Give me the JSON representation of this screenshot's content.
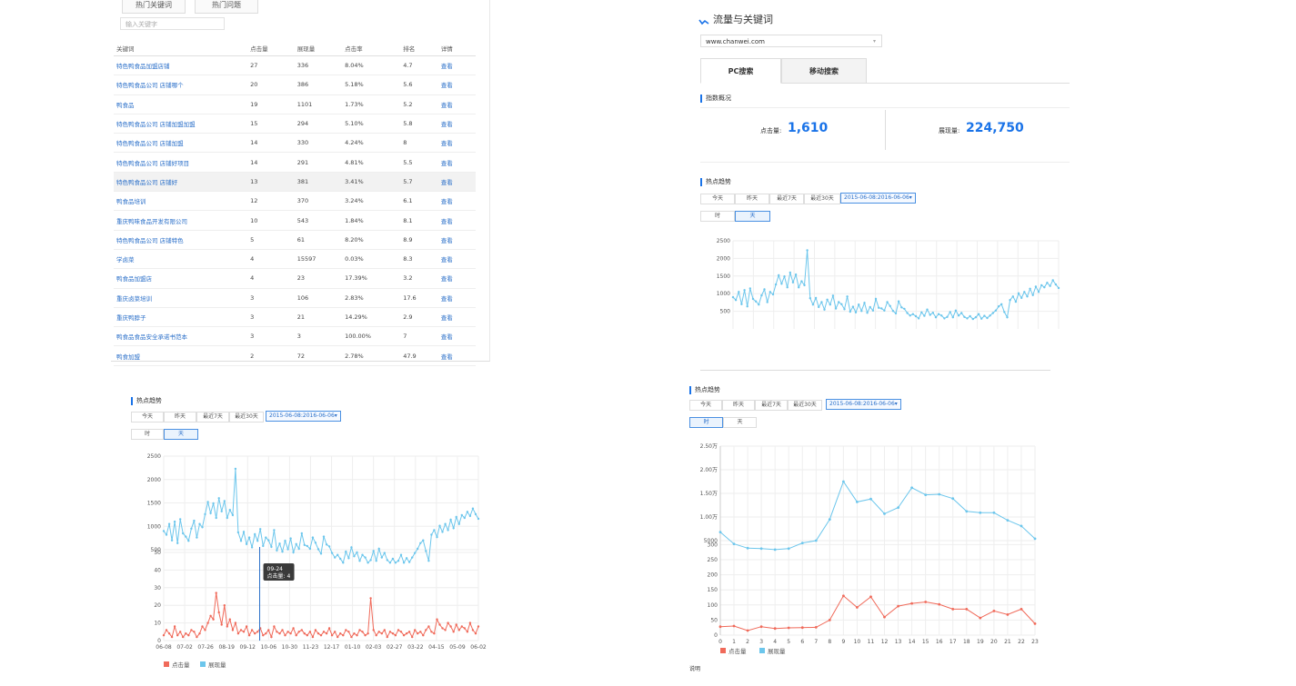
{
  "keywords_panel": {
    "tabs": [
      "热门关键词",
      "热门问题"
    ],
    "search_placeholder": "输入关键字",
    "headers": [
      "关键词",
      "点击量",
      "展现量",
      "点击率",
      "排名",
      "详情"
    ],
    "rows": [
      [
        "特色鸭食品加盟店铺",
        "27",
        "336",
        "8.04%",
        "4.7",
        "查看"
      ],
      [
        "特色鸭食品公司 店铺哪个",
        "20",
        "386",
        "5.18%",
        "5.6",
        "查看"
      ],
      [
        "鸭食品",
        "19",
        "1101",
        "1.73%",
        "5.2",
        "查看"
      ],
      [
        "特色鸭食品公司 店铺加盟加盟",
        "15",
        "294",
        "5.10%",
        "5.8",
        "查看"
      ],
      [
        "特色鸭食品公司 店铺加盟",
        "14",
        "330",
        "4.24%",
        "8",
        "查看"
      ],
      [
        "特色鸭食品公司 店铺好项目",
        "14",
        "291",
        "4.81%",
        "5.5",
        "查看"
      ],
      [
        "特色鸭食品公司 店铺好",
        "13",
        "381",
        "3.41%",
        "5.7",
        "查看"
      ],
      [
        "鸭食品培训",
        "12",
        "370",
        "3.24%",
        "6.1",
        "查看"
      ],
      [
        "重庆鸭味食品开发有限公司",
        "10",
        "543",
        "1.84%",
        "8.1",
        "查看"
      ],
      [
        "特色鸭食品公司 店铺特色",
        "5",
        "61",
        "8.20%",
        "8.9",
        "查看"
      ],
      [
        "学卤菜",
        "4",
        "15597",
        "0.03%",
        "8.3",
        "查看"
      ],
      [
        "鸭食品加盟店",
        "4",
        "23",
        "17.39%",
        "3.2",
        "查看"
      ],
      [
        "重庆卤菜培训",
        "3",
        "106",
        "2.83%",
        "17.6",
        "查看"
      ],
      [
        "重庆鸭脖子",
        "3",
        "21",
        "14.29%",
        "2.9",
        "查看"
      ],
      [
        "鸭食品食品安全承诺书范本",
        "3",
        "3",
        "100.00%",
        "7",
        "查看"
      ],
      [
        "鸭食加盟",
        "2",
        "72",
        "2.78%",
        "47.9",
        "查看"
      ]
    ],
    "highlight_row": 6
  },
  "flow_panel": {
    "title": "流量与关键词",
    "domain_select": "www.chanwei.com",
    "tabs": [
      "PC搜索",
      "移动搜索"
    ],
    "overview_title": "指数概况",
    "clicks_label": "点击量:",
    "clicks_value": "1,610",
    "impr_label": "展现量:",
    "impr_value": "224,750",
    "trend_title": "热点趋势",
    "range_buttons": [
      "今天",
      "昨天",
      "最近7天",
      "最近30天"
    ],
    "date_range": "2015-06-08:2016-06-06▾",
    "gran_buttons": [
      "时",
      "天"
    ],
    "gran_selected": "天"
  },
  "trend_panel_left": {
    "title": "热点趋势",
    "range_buttons": [
      "今天",
      "昨天",
      "最近7天",
      "最近30天"
    ],
    "date_range": "2015-06-08:2016-06-06▾",
    "gran_buttons": [
      "时",
      "天"
    ],
    "gran_selected": "天",
    "tooltip_date": "09-24",
    "tooltip_value": "点击量: 4",
    "legend": [
      "点击量",
      "展现量"
    ]
  },
  "trend_panel_right": {
    "title": "热点趋势",
    "range_buttons": [
      "今天",
      "昨天",
      "最近7天",
      "最近30天"
    ],
    "date_range": "2015-06-08:2016-06-06▾",
    "gran_buttons": [
      "时",
      "天"
    ],
    "gran_selected": "时",
    "legend": [
      "点击量",
      "展现量"
    ],
    "footer": "说明"
  },
  "colors": {
    "impressions": "#6cc6ec",
    "clicks": "#f06a5a",
    "link": "#2a6fc9",
    "accent": "#1a73e8"
  },
  "chart_data": [
    {
      "type": "line",
      "ylim": [
        0,
        2500
      ],
      "yticks": [
        "2500",
        "2000",
        "1500",
        "1000",
        "500"
      ],
      "series": [
        {
          "values": [
            900,
            820,
            1050,
            700,
            1100,
            640,
            1150,
            850,
            780,
            690,
            950,
            1120,
            760,
            1050,
            980,
            1260,
            1520,
            1280,
            1490,
            1180,
            1600,
            1320,
            1540,
            1180,
            1350,
            1240,
            2230,
            870,
            690,
            880,
            620,
            760,
            550,
            830,
            690,
            940,
            580,
            760,
            700,
            560,
            920,
            490,
            630,
            470,
            690,
            510,
            740,
            460,
            620,
            520,
            850,
            600,
            580,
            520,
            760,
            650,
            510,
            440,
            780,
            610,
            570,
            450,
            380,
            420,
            360,
            300,
            470,
            370,
            550,
            400,
            460,
            330,
            420,
            380,
            300,
            340,
            480,
            330,
            520,
            380,
            450,
            340,
            300,
            360,
            280,
            330,
            420,
            290,
            370,
            310,
            380,
            450,
            520,
            640,
            700,
            480,
            330,
            820,
            920,
            770,
            1010,
            880,
            1050,
            920,
            1140,
            960,
            1200,
            1050,
            1240,
            1180,
            1310,
            1220,
            1380,
            1260,
            1160
          ]
        }
      ]
    },
    {
      "type": "line",
      "x_ticks": [
        "06-08",
        "07-02",
        "07-26",
        "08-19",
        "09-12",
        "10-06",
        "10-30",
        "11-23",
        "12-17",
        "01-10",
        "02-03",
        "02-27",
        "03-22",
        "04-15",
        "05-09",
        "06-02"
      ],
      "y_ticks": [
        "2500",
        "2000",
        "1500",
        "1000",
        "500",
        "50",
        "40",
        "30",
        "20",
        "10",
        "0"
      ],
      "series": [
        {
          "name": "展现量",
          "values": [
            900,
            820,
            1050,
            700,
            1100,
            640,
            1150,
            850,
            780,
            690,
            950,
            1120,
            760,
            1050,
            980,
            1260,
            1520,
            1280,
            1490,
            1180,
            1600,
            1320,
            1540,
            1180,
            1350,
            1240,
            2230,
            870,
            690,
            880,
            620,
            760,
            550,
            830,
            690,
            940,
            580,
            760,
            700,
            560,
            920,
            490,
            630,
            470,
            690,
            510,
            740,
            460,
            620,
            520,
            850,
            600,
            580,
            520,
            760,
            650,
            510,
            440,
            780,
            610,
            570,
            450,
            380,
            420,
            360,
            300,
            470,
            370,
            550,
            400,
            460,
            330,
            420,
            380,
            300,
            340,
            480,
            330,
            520,
            380,
            450,
            340,
            300,
            360,
            280,
            330,
            420,
            290,
            370,
            310,
            380,
            450,
            520,
            640,
            700,
            480,
            330,
            820,
            920,
            770,
            1010,
            880,
            1050,
            920,
            1140,
            960,
            1200,
            1050,
            1240,
            1180,
            1310,
            1220,
            1380,
            1260,
            1160
          ]
        },
        {
          "name": "点击量",
          "values": [
            3,
            6,
            4,
            2,
            8,
            3,
            5,
            2,
            4,
            3,
            6,
            5,
            2,
            4,
            8,
            6,
            10,
            14,
            12,
            27,
            16,
            9,
            20,
            8,
            12,
            6,
            10,
            4,
            6,
            5,
            8,
            3,
            6,
            4,
            5,
            7,
            3,
            4,
            6,
            2,
            8,
            5,
            4,
            6,
            3,
            5,
            4,
            7,
            3,
            5,
            6,
            4,
            3,
            5,
            2,
            6,
            4,
            3,
            5,
            4,
            7,
            3,
            5,
            2,
            4,
            3,
            6,
            5,
            2,
            4,
            3,
            6,
            5,
            3,
            4,
            24,
            6,
            3,
            5,
            4,
            6,
            2,
            5,
            4,
            3,
            6,
            5,
            3,
            4,
            5,
            2,
            6,
            4,
            5,
            3,
            6,
            8,
            5,
            4,
            12,
            9,
            7,
            6,
            10,
            8,
            5,
            9,
            6,
            8,
            7,
            5,
            10,
            6,
            4,
            8
          ]
        }
      ]
    },
    {
      "type": "line",
      "x": [
        0,
        1,
        2,
        3,
        4,
        5,
        6,
        7,
        8,
        9,
        10,
        11,
        12,
        13,
        14,
        15,
        16,
        17,
        18,
        19,
        20,
        21,
        22,
        23
      ],
      "y_ticks": [
        "2.50万",
        "2.00万",
        "1.50万",
        "1.00万",
        "5000",
        "300",
        "250",
        "200",
        "150",
        "100",
        "50",
        "0"
      ],
      "series": [
        {
          "name": "展现量",
          "values": [
            6800,
            4300,
            3400,
            3300,
            3100,
            3300,
            4500,
            5000,
            9500,
            17500,
            13200,
            13800,
            10700,
            12000,
            16200,
            14700,
            14800,
            13900,
            11200,
            10900,
            10900,
            9300,
            8100,
            5400
          ]
        },
        {
          "name": "点击量",
          "values": [
            28,
            30,
            15,
            28,
            22,
            24,
            25,
            26,
            50,
            130,
            92,
            127,
            60,
            96,
            105,
            110,
            102,
            86,
            86,
            57,
            80,
            68,
            86,
            38
          ]
        }
      ]
    }
  ]
}
